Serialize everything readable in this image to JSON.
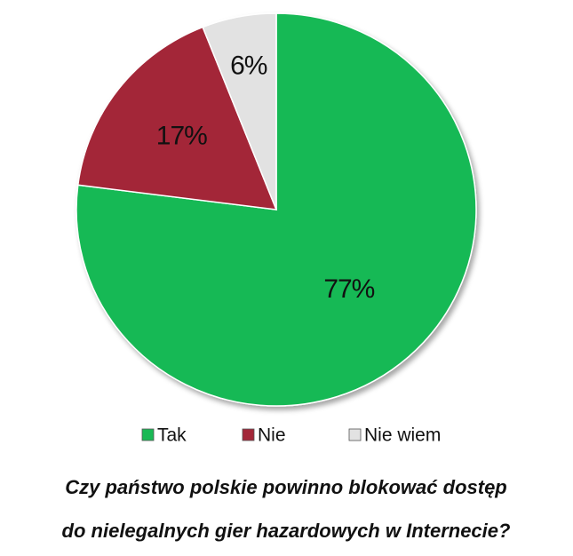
{
  "chart_data": {
    "type": "pie",
    "title": [
      "Czy państwo polskie powinno blokować dostęp",
      "do nielegalnych gier hazardowych w Internecie?"
    ],
    "categories": [
      "Tak",
      "Nie",
      "Nie wiem"
    ],
    "values": [
      77,
      17,
      6
    ],
    "value_labels": [
      "77%",
      "17%",
      "6%"
    ],
    "colors": [
      "#19b955",
      "#a32638",
      "#e2e2e2"
    ],
    "legend": "bottom"
  }
}
